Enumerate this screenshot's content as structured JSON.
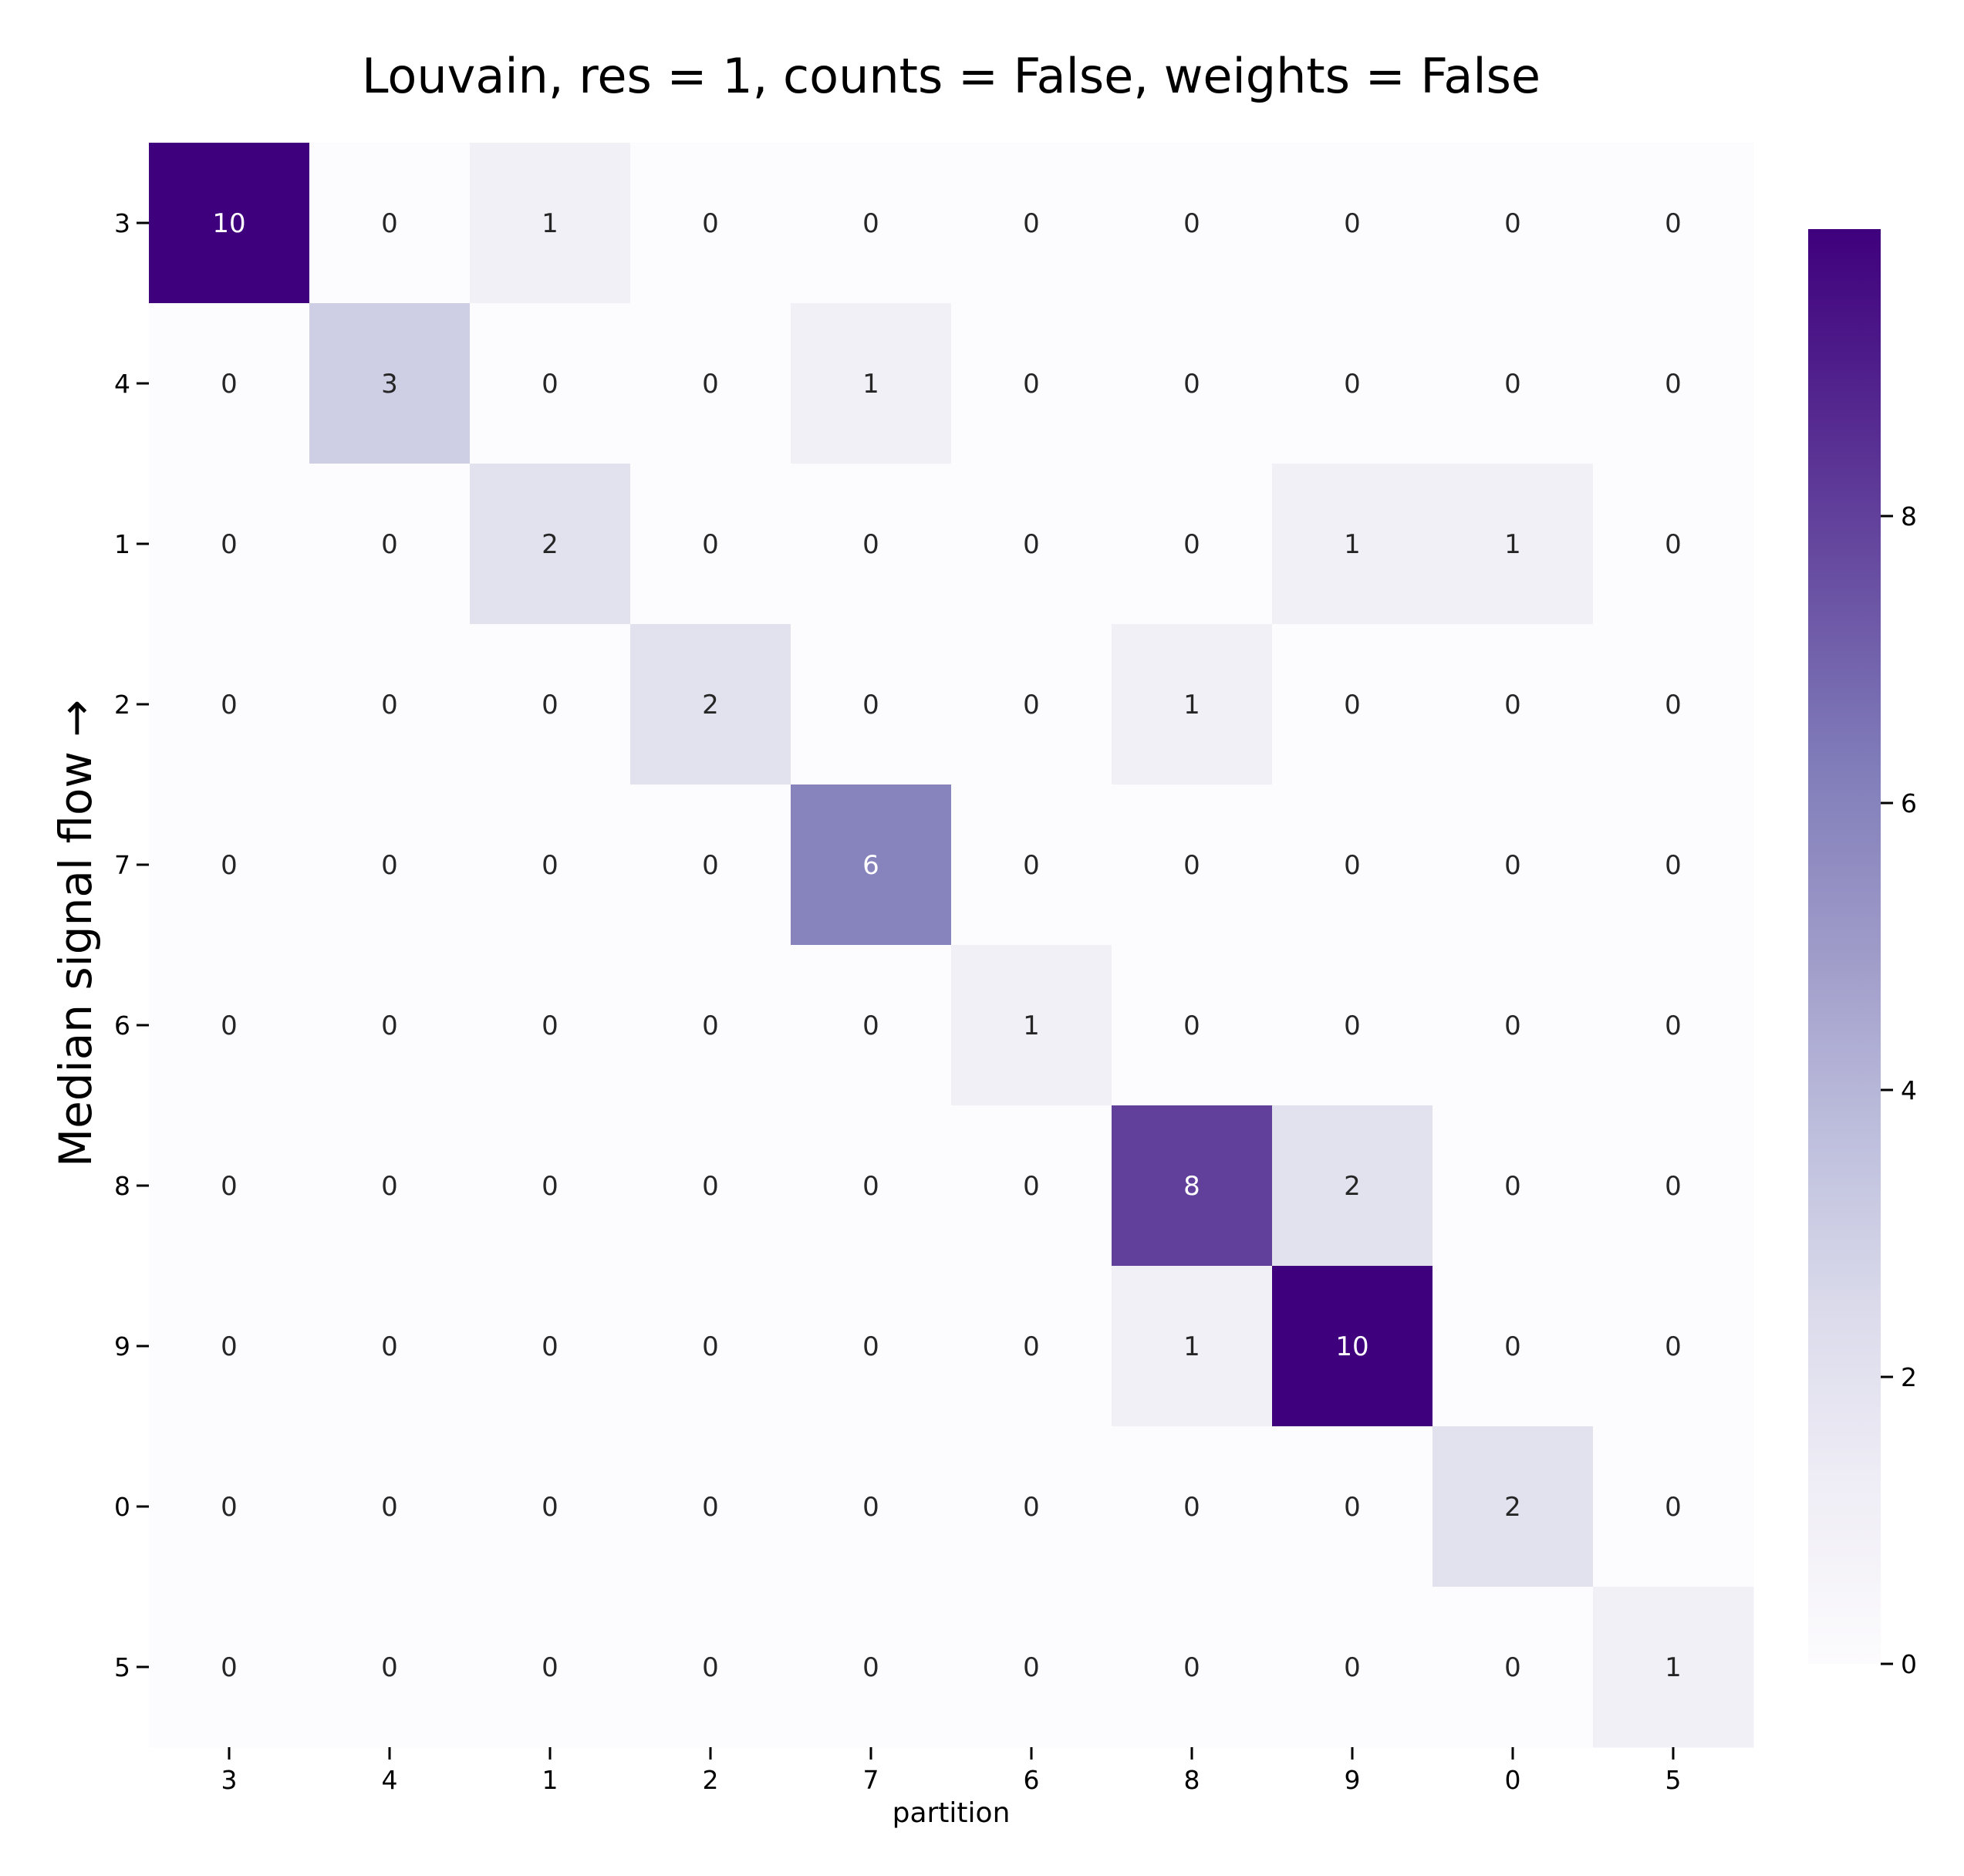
{
  "chart_data": {
    "type": "heatmap",
    "title": "Louvain, res = 1, counts = False, weights = False",
    "xlabel": "partition",
    "ylabel": "Median signal flow →",
    "x_categories": [
      "3",
      "4",
      "1",
      "2",
      "7",
      "6",
      "8",
      "9",
      "0",
      "5"
    ],
    "y_categories": [
      "3",
      "4",
      "1",
      "2",
      "7",
      "6",
      "8",
      "9",
      "0",
      "5"
    ],
    "values": [
      [
        10,
        0,
        1,
        0,
        0,
        0,
        0,
        0,
        0,
        0
      ],
      [
        0,
        3,
        0,
        0,
        1,
        0,
        0,
        0,
        0,
        0
      ],
      [
        0,
        0,
        2,
        0,
        0,
        0,
        0,
        1,
        1,
        0
      ],
      [
        0,
        0,
        0,
        2,
        0,
        0,
        1,
        0,
        0,
        0
      ],
      [
        0,
        0,
        0,
        0,
        6,
        0,
        0,
        0,
        0,
        0
      ],
      [
        0,
        0,
        0,
        0,
        0,
        1,
        0,
        0,
        0,
        0
      ],
      [
        0,
        0,
        0,
        0,
        0,
        0,
        8,
        2,
        0,
        0
      ],
      [
        0,
        0,
        0,
        0,
        0,
        0,
        1,
        10,
        0,
        0
      ],
      [
        0,
        0,
        0,
        0,
        0,
        0,
        0,
        0,
        2,
        0
      ],
      [
        0,
        0,
        0,
        0,
        0,
        0,
        0,
        0,
        0,
        1
      ]
    ],
    "colorbar": {
      "ticks": [
        "0",
        "2",
        "4",
        "6",
        "8"
      ],
      "range": [
        0,
        10
      ],
      "colors": [
        "#fcfbfd",
        "#efedf5",
        "#dadaeb",
        "#bcbddc",
        "#9e9ac8",
        "#807dba",
        "#6a51a3",
        "#54278f",
        "#3f007d"
      ]
    },
    "grid": false
  }
}
